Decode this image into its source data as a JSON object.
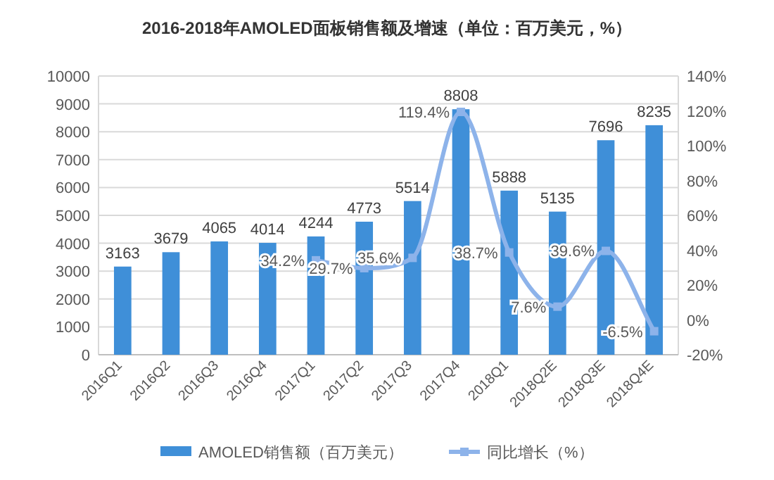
{
  "chart_data": {
    "type": "bar",
    "title": "2016-2018年AMOLED面板销售额及增速（单位：百万美元，%）",
    "categories": [
      "2016Q1",
      "2016Q2",
      "2016Q3",
      "2016Q4",
      "2017Q1",
      "2017Q2",
      "2017Q3",
      "2017Q4",
      "2018Q1",
      "2018Q2E",
      "2018Q3E",
      "2018Q4E"
    ],
    "series": [
      {
        "name": "AMOLED销售额（百万美元）",
        "color": "#3f8fd8",
        "values": [
          3163,
          3679,
          4065,
          4014,
          4244,
          4773,
          5514,
          8808,
          5888,
          5135,
          7696,
          8235
        ],
        "value_labels": [
          "3163",
          "3679",
          "4065",
          "4014",
          "4244",
          "4773",
          "5514",
          "8808",
          "5888",
          "5135",
          "7696",
          "8235"
        ]
      },
      {
        "name": "同比增长（%）",
        "color": "#8db3ea",
        "type": "line",
        "axis": "y2",
        "marker": "square",
        "values": [
          null,
          null,
          null,
          null,
          34.2,
          29.7,
          35.6,
          119.4,
          38.7,
          7.6,
          39.6,
          -6.5
        ],
        "value_labels": [
          null,
          null,
          null,
          null,
          "34.2%",
          "29.7%",
          "35.6%",
          "119.4%",
          "38.7%",
          "7.6%",
          "39.6%",
          "-6.5%"
        ]
      }
    ],
    "ylim": [
      0,
      10000
    ],
    "yticks": [
      0,
      1000,
      2000,
      3000,
      4000,
      5000,
      6000,
      7000,
      8000,
      9000,
      10000
    ],
    "y2lim": [
      -20,
      140
    ],
    "y2ticks": [
      {
        "value": -20,
        "label": "-20%"
      },
      {
        "value": 0,
        "label": "0%"
      },
      {
        "value": 20,
        "label": "20%"
      },
      {
        "value": 40,
        "label": "40%"
      },
      {
        "value": 60,
        "label": "60%"
      },
      {
        "value": 80,
        "label": "80%"
      },
      {
        "value": 100,
        "label": "100%"
      },
      {
        "value": 120,
        "label": "120%"
      },
      {
        "value": 140,
        "label": "140%"
      }
    ],
    "grid": "y",
    "legend": "bottom"
  }
}
